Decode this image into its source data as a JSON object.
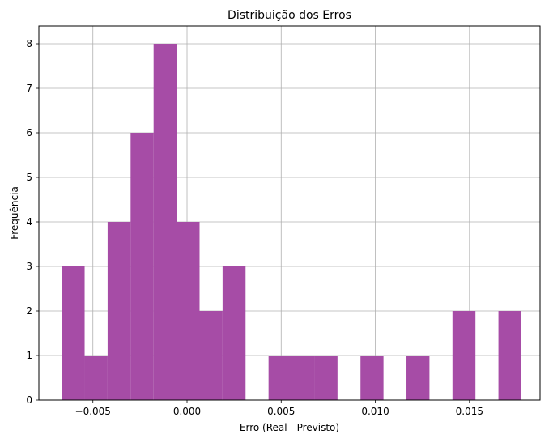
{
  "chart_data": {
    "type": "bar",
    "title": "Distribuição dos Erros",
    "xlabel": "Erro (Real - Previsto)",
    "ylabel": "Frequência",
    "xlim": [
      -0.00787,
      0.01875
    ],
    "ylim": [
      0,
      8.4
    ],
    "bin_start": -0.00666,
    "bin_width": 0.001221,
    "counts": [
      3,
      1,
      4,
      6,
      8,
      4,
      2,
      3,
      0,
      1,
      1,
      1,
      0,
      1,
      0,
      1,
      0,
      2,
      0,
      2
    ],
    "x_ticks": [
      -0.005,
      0.0,
      0.005,
      0.01,
      0.015
    ],
    "x_tick_labels": [
      "−0.005",
      "0.000",
      "0.005",
      "0.010",
      "0.015"
    ],
    "y_ticks": [
      0,
      1,
      2,
      3,
      4,
      5,
      6,
      7,
      8
    ],
    "y_tick_labels": [
      "0",
      "1",
      "2",
      "3",
      "4",
      "5",
      "6",
      "7",
      "8"
    ],
    "bar_color": "#a64ca6",
    "grid": true,
    "grid_color": "#b0b0b0"
  }
}
